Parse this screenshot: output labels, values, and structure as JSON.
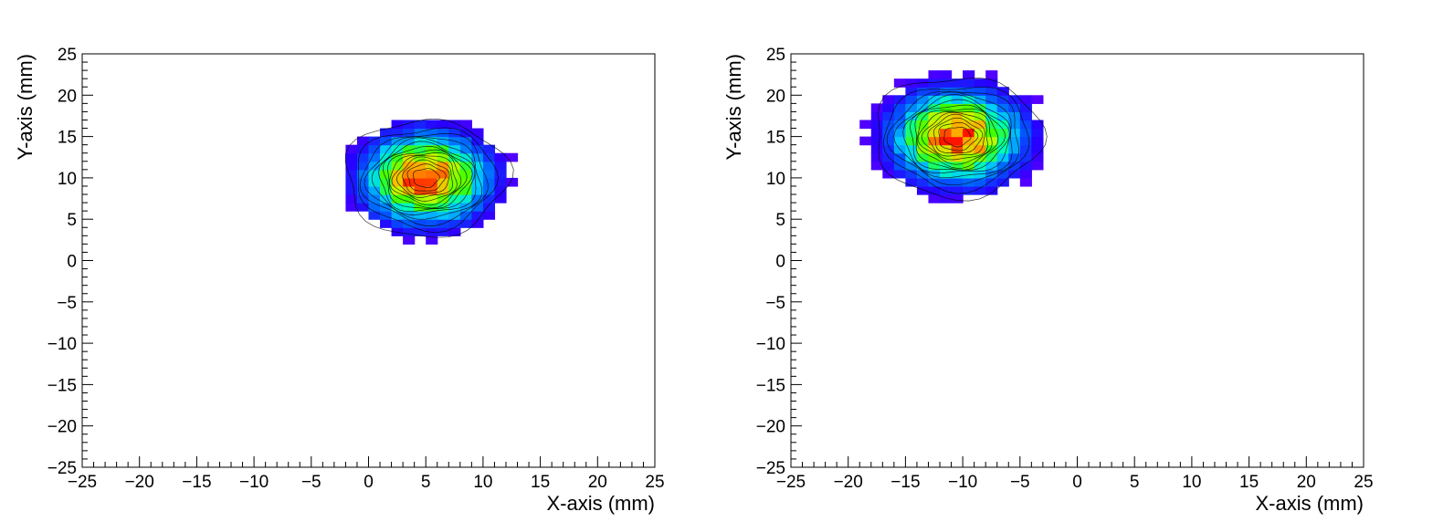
{
  "chart_data": [
    {
      "type": "heatmap",
      "title": "",
      "xlabel": "X-axis (mm)",
      "ylabel": "Y-axis (mm)",
      "xlim": [
        -25,
        25
      ],
      "ylim": [
        -25,
        25
      ],
      "xticks": [
        "−25",
        "−20",
        "−15",
        "−10",
        "−5",
        "0",
        "5",
        "10",
        "15",
        "20",
        "25"
      ],
      "yticks": [
        "−25",
        "−20",
        "−15",
        "−10",
        "−5",
        "0",
        "5",
        "10",
        "15",
        "20",
        "25"
      ],
      "bin_size_mm": 1,
      "contours": true,
      "distribution": "gaussian-like 2D spot",
      "center": [
        5,
        10
      ],
      "sigma": [
        3.2,
        3.2
      ],
      "peak_level": 1.0,
      "spot_extent": {
        "x": [
          -6,
          16
        ],
        "y": [
          -2,
          22
        ]
      },
      "palette": "rainbow (violet → blue → cyan → green → yellow → red)"
    },
    {
      "type": "heatmap",
      "title": "",
      "xlabel": "X-axis (mm)",
      "ylabel": "Y-axis (mm)",
      "xlim": [
        -25,
        25
      ],
      "ylim": [
        -25,
        25
      ],
      "xticks": [
        "−25",
        "−20",
        "−15",
        "−10",
        "−5",
        "0",
        "5",
        "10",
        "15",
        "20",
        "25"
      ],
      "yticks": [
        "−25",
        "−20",
        "−15",
        "−10",
        "−5",
        "0",
        "5",
        "10",
        "15",
        "20",
        "25"
      ],
      "bin_size_mm": 1,
      "contours": true,
      "distribution": "gaussian-like 2D spot",
      "center": [
        -10.5,
        15
      ],
      "sigma": [
        3.3,
        3.3
      ],
      "peak_level": 1.0,
      "spot_extent": {
        "x": [
          -21,
          1
        ],
        "y": [
          3,
          25
        ]
      },
      "palette": "rainbow (violet → blue → cyan → green → yellow → red)"
    }
  ]
}
